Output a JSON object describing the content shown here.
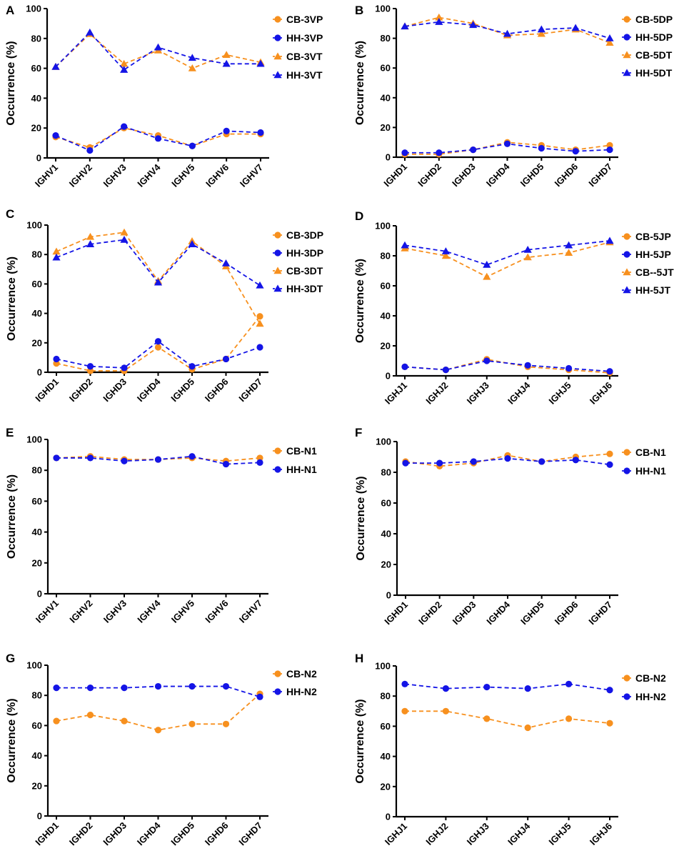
{
  "colors": {
    "cb": "#F7901E",
    "hh": "#1414E6",
    "axis": "#000000"
  },
  "y_axis_label": "Occurrence (%)",
  "chart_data": [
    {
      "panel": "A",
      "type": "line",
      "categories": [
        "IGHV1",
        "IGHV2",
        "IGHV3",
        "IGHV4",
        "IGHV5",
        "IGHV6",
        "IGHV7"
      ],
      "ylim": [
        0,
        100
      ],
      "yticks": [
        0,
        20,
        40,
        60,
        80,
        100
      ],
      "ylabel": "Occurrence (%)",
      "series": [
        {
          "name": "CB-3VP",
          "group": "cb",
          "marker": "circle",
          "values": [
            14,
            7,
            20,
            15,
            8,
            16,
            16
          ]
        },
        {
          "name": "HH-3VP",
          "group": "hh",
          "marker": "circle",
          "values": [
            15,
            5,
            21,
            13,
            8,
            18,
            17
          ]
        },
        {
          "name": "CB-3VT",
          "group": "cb",
          "marker": "triangle",
          "values": [
            61,
            83,
            63,
            72,
            60,
            69,
            64
          ]
        },
        {
          "name": "HH-3VT",
          "group": "hh",
          "marker": "triangle",
          "values": [
            61,
            84,
            59,
            74,
            67,
            63,
            63
          ]
        }
      ]
    },
    {
      "panel": "B",
      "type": "line",
      "categories": [
        "IGHD1",
        "IGHD2",
        "IGHD3",
        "IGHD4",
        "IGHD5",
        "IGHD6",
        "IGHD7"
      ],
      "ylim": [
        0,
        100
      ],
      "yticks": [
        0,
        20,
        40,
        60,
        80,
        100
      ],
      "ylabel": "Occurrence (%)",
      "series": [
        {
          "name": "CB-5DP",
          "group": "cb",
          "marker": "circle",
          "values": [
            2,
            2,
            5,
            10,
            8,
            5,
            8
          ]
        },
        {
          "name": "HH-5DP",
          "group": "hh",
          "marker": "circle",
          "values": [
            3,
            3,
            5,
            9,
            6,
            4,
            5
          ]
        },
        {
          "name": "CB-5DT",
          "group": "cb",
          "marker": "triangle",
          "values": [
            88,
            94,
            90,
            82,
            83,
            86,
            77
          ]
        },
        {
          "name": "HH-5DT",
          "group": "hh",
          "marker": "triangle",
          "values": [
            88,
            91,
            89,
            83,
            86,
            87,
            80
          ]
        }
      ]
    },
    {
      "panel": "C",
      "type": "line",
      "categories": [
        "IGHD1",
        "IGHD2",
        "IGHD3",
        "IGHD4",
        "IGHD5",
        "IGHD6",
        "IGHD7"
      ],
      "ylim": [
        0,
        100
      ],
      "yticks": [
        0,
        20,
        40,
        60,
        80,
        100
      ],
      "ylabel": "Occurrence (%)",
      "series": [
        {
          "name": "CB-3DP",
          "group": "cb",
          "marker": "circle",
          "values": [
            6,
            1,
            1,
            17,
            2,
            9,
            38
          ]
        },
        {
          "name": "HH-3DP",
          "group": "hh",
          "marker": "circle",
          "values": [
            9,
            4,
            3,
            21,
            4,
            9,
            17
          ]
        },
        {
          "name": "CB-3DT",
          "group": "cb",
          "marker": "triangle",
          "values": [
            82,
            92,
            95,
            62,
            89,
            72,
            33
          ]
        },
        {
          "name": "HH-3DT",
          "group": "hh",
          "marker": "triangle",
          "values": [
            78,
            87,
            90,
            61,
            87,
            74,
            59
          ]
        }
      ]
    },
    {
      "panel": "D",
      "type": "line",
      "categories": [
        "IGHJ1",
        "IGHJ2",
        "IGHJ3",
        "IGHJ4",
        "IGHJ5",
        "IGHJ6"
      ],
      "ylim": [
        0,
        100
      ],
      "yticks": [
        0,
        20,
        40,
        60,
        80,
        100
      ],
      "ylabel": "Occurrence (%)",
      "series": [
        {
          "name": "CB-5JP",
          "group": "cb",
          "marker": "circle",
          "values": [
            6,
            4,
            11,
            6,
            4,
            2
          ]
        },
        {
          "name": "HH-5JP",
          "group": "hh",
          "marker": "circle",
          "values": [
            6,
            4,
            10,
            7,
            5,
            3
          ]
        },
        {
          "name": "CB--5JT",
          "group": "cb",
          "marker": "triangle",
          "values": [
            85,
            80,
            66,
            79,
            82,
            89
          ]
        },
        {
          "name": "HH-5JT",
          "group": "hh",
          "marker": "triangle",
          "values": [
            87,
            83,
            74,
            84,
            87,
            90
          ]
        }
      ]
    },
    {
      "panel": "E",
      "type": "line",
      "categories": [
        "IGHV1",
        "IGHV2",
        "IGHV3",
        "IGHV4",
        "IGHV5",
        "IGHV6",
        "IGHV7"
      ],
      "ylim": [
        0,
        100
      ],
      "yticks": [
        0,
        20,
        40,
        60,
        80,
        100
      ],
      "ylabel": "Occurrence (%)",
      "series": [
        {
          "name": "CB-N1",
          "group": "cb",
          "marker": "circle",
          "values": [
            88,
            89,
            87,
            87,
            88,
            86,
            88
          ]
        },
        {
          "name": "HH-N1",
          "group": "hh",
          "marker": "circle",
          "values": [
            88,
            88,
            86,
            87,
            89,
            84,
            85
          ]
        }
      ]
    },
    {
      "panel": "F",
      "type": "line",
      "categories": [
        "IGHD1",
        "IGHD2",
        "IGHD3",
        "IGHD4",
        "IGHD5",
        "IGHD6",
        "IGHD7"
      ],
      "ylim": [
        0,
        100
      ],
      "yticks": [
        0,
        20,
        40,
        60,
        80,
        100
      ],
      "ylabel": "Occurrence (%)",
      "series": [
        {
          "name": "CB-N1",
          "group": "cb",
          "marker": "circle",
          "values": [
            87,
            84,
            86,
            91,
            87,
            90,
            92
          ]
        },
        {
          "name": "HH-N1",
          "group": "hh",
          "marker": "circle",
          "values": [
            86,
            86,
            87,
            89,
            87,
            88,
            85
          ]
        }
      ]
    },
    {
      "panel": "G",
      "type": "line",
      "categories": [
        "IGHD1",
        "IGHD2",
        "IGHD3",
        "IGHD4",
        "IGHD5",
        "IGHD6",
        "IGHD7"
      ],
      "ylim": [
        0,
        100
      ],
      "yticks": [
        0,
        20,
        40,
        60,
        80,
        100
      ],
      "ylabel": "Occurrence (%)",
      "series": [
        {
          "name": "CB-N2",
          "group": "cb",
          "marker": "circle",
          "values": [
            63,
            67,
            63,
            57,
            61,
            61,
            81
          ]
        },
        {
          "name": "HH-N2",
          "group": "hh",
          "marker": "circle",
          "values": [
            85,
            85,
            85,
            86,
            86,
            86,
            79
          ]
        }
      ]
    },
    {
      "panel": "H",
      "type": "line",
      "categories": [
        "IGHJ1",
        "IGHJ2",
        "IGHJ3",
        "IGHJ4",
        "IGHJ5",
        "IGHJ6"
      ],
      "ylim": [
        0,
        100
      ],
      "yticks": [
        0,
        20,
        40,
        60,
        80,
        100
      ],
      "ylabel": "Occurrence (%)",
      "series": [
        {
          "name": "CB-N2",
          "group": "cb",
          "marker": "circle",
          "values": [
            70,
            70,
            65,
            59,
            65,
            62
          ]
        },
        {
          "name": "HH-N2",
          "group": "hh",
          "marker": "circle",
          "values": [
            88,
            85,
            86,
            85,
            88,
            84
          ]
        }
      ]
    }
  ]
}
